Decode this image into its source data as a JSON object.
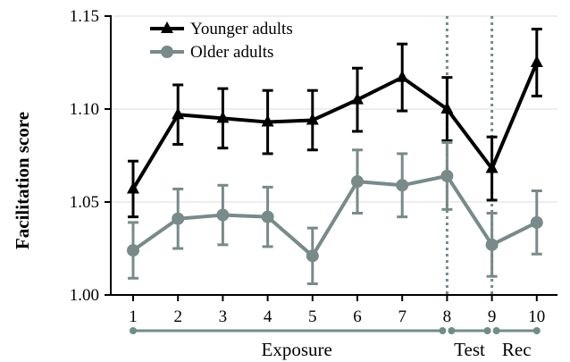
{
  "colors": {
    "younger": "#000000",
    "older": "#788a89",
    "grid": "#e8e8e8",
    "divider": "#6f8c8a",
    "phase_line": "#6f8c8a"
  },
  "chart_data": {
    "type": "line",
    "title": "",
    "xlabel": "",
    "ylabel": "Facilitation score",
    "x": [
      1,
      2,
      3,
      4,
      5,
      6,
      7,
      8,
      9,
      10
    ],
    "xticklabels": [
      "1",
      "2",
      "3",
      "4",
      "5",
      "6",
      "7",
      "8",
      "9",
      "10"
    ],
    "ylim": [
      1.0,
      1.15
    ],
    "yticks": [
      1.0,
      1.05,
      1.1,
      1.15
    ],
    "yticklabels": [
      "1.00",
      "1.05",
      "1.10",
      "1.15"
    ],
    "grid": "horizontal",
    "legend_position": "top-left",
    "series": [
      {
        "name": "Younger adults",
        "marker": "triangle",
        "color": "#000000",
        "values": [
          1.057,
          1.097,
          1.095,
          1.093,
          1.094,
          1.105,
          1.117,
          1.1,
          1.068,
          1.125
        ],
        "error": [
          0.015,
          0.016,
          0.016,
          0.017,
          0.016,
          0.017,
          0.018,
          0.017,
          0.017,
          0.018
        ]
      },
      {
        "name": "Older adults",
        "marker": "circle",
        "color": "#788a89",
        "values": [
          1.024,
          1.041,
          1.043,
          1.042,
          1.021,
          1.061,
          1.059,
          1.064,
          1.027,
          1.039
        ],
        "error": [
          0.015,
          0.016,
          0.016,
          0.016,
          0.015,
          0.017,
          0.017,
          0.018,
          0.017,
          0.017
        ]
      }
    ],
    "dividers_after_x": [
      8,
      9
    ],
    "phases": [
      {
        "label": "Exposure",
        "from": 1,
        "to": 7.9
      },
      {
        "label": "Test",
        "from": 8.1,
        "to": 8.9
      },
      {
        "label": "Rec",
        "from": 9.1,
        "to": 10
      }
    ]
  }
}
